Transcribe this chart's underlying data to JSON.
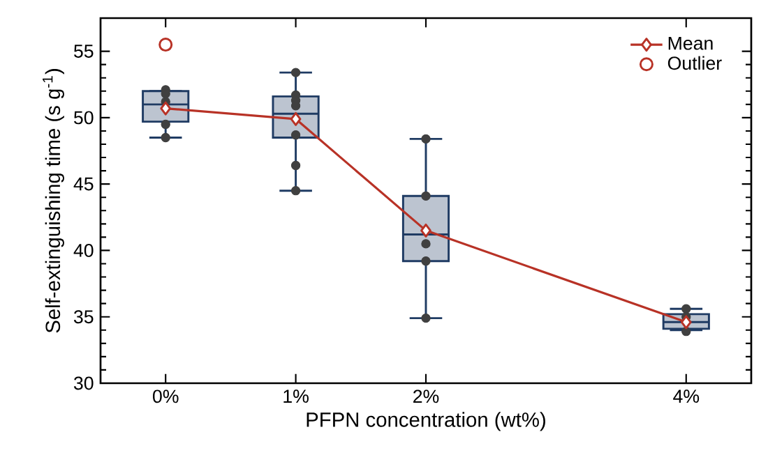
{
  "chart_data": {
    "type": "box",
    "xlabel": "PFPN concentration (wt%)",
    "ylabel": "Self-extinguishing time (s g$^{-1}$)",
    "xlim": [
      -0.5,
      4.5
    ],
    "xticks": [
      {
        "value": 0,
        "label": "0%"
      },
      {
        "value": 1,
        "label": "1%"
      },
      {
        "value": 2,
        "label": "2%"
      },
      {
        "value": 4,
        "label": "4%"
      }
    ],
    "ylim": [
      30,
      57.5
    ],
    "yticks": [
      30,
      35,
      40,
      45,
      50,
      55
    ],
    "legend": "top right",
    "series": [
      {
        "type": "box",
        "color": "#1f3b63",
        "x": [
          0,
          1,
          2,
          4
        ],
        "boxes": [
          {
            "low": 48.5,
            "q1": 49.7,
            "median": 51.0,
            "q3": 52.0,
            "high": 52.0
          },
          {
            "low": 44.5,
            "q1": 48.5,
            "median": 50.3,
            "q3": 51.6,
            "high": 53.4
          },
          {
            "low": 34.9,
            "q1": 39.2,
            "median": 41.2,
            "q3": 44.1,
            "high": 48.4
          },
          {
            "low": 34.0,
            "q1": 34.1,
            "median": 34.6,
            "q3": 35.2,
            "high": 35.6
          }
        ]
      },
      {
        "type": "scatter",
        "color": "#404040",
        "marker": "circle",
        "x": [
          0,
          0,
          0,
          0,
          0,
          1,
          1,
          1,
          1,
          1,
          1,
          1,
          2,
          2,
          2,
          2,
          2,
          4,
          4,
          4
        ],
        "values": [
          52.1,
          51.8,
          51.2,
          49.5,
          48.5,
          53.4,
          51.7,
          51.3,
          50.9,
          48.7,
          46.4,
          44.5,
          48.4,
          44.1,
          40.5,
          39.2,
          34.9,
          35.6,
          35.0,
          33.9
        ]
      },
      {
        "type": "line",
        "name": "Mean",
        "color": "#b83226",
        "marker": "diamond",
        "x": [
          0,
          1,
          2,
          4
        ],
        "values": [
          50.7,
          49.9,
          41.5,
          34.6
        ]
      },
      {
        "type": "scatter",
        "name": "Outlier",
        "color": "#b83226",
        "marker": "circle",
        "x": [
          0
        ],
        "values": [
          55.5
        ]
      }
    ]
  }
}
